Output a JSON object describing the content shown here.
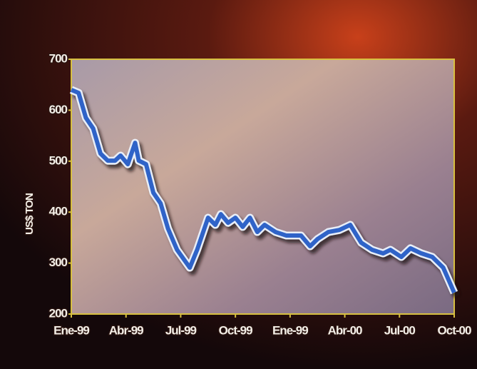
{
  "chart_data": {
    "type": "line",
    "y_label": "US$ TON",
    "x": [
      0,
      0.4,
      0.8,
      1.2,
      1.6,
      2.0,
      2.4,
      2.7,
      3.1,
      3.5,
      3.7,
      4.1,
      4.5,
      4.9,
      5.3,
      5.8,
      6.5,
      6.9,
      7.5,
      7.9,
      8.2,
      8.6,
      9.0,
      9.4,
      9.8,
      10.2,
      10.6,
      11.2,
      11.8,
      12.6,
      13.1,
      13.5,
      14.1,
      14.7,
      15.3,
      15.9,
      16.5,
      17.1,
      17.5,
      18.1,
      18.6,
      19.2,
      19.8,
      20.4,
      21.0
    ],
    "series": [
      {
        "color": "#2f63c8",
        "values": [
          640,
          634,
          585,
          564,
          515,
          501,
          501,
          511,
          494,
          536,
          501,
          494,
          438,
          417,
          368,
          326,
          291,
          326,
          389,
          375,
          396,
          379,
          389,
          371,
          389,
          361,
          375,
          361,
          354,
          354,
          333,
          347,
          361,
          365,
          375,
          340,
          326,
          319,
          326,
          312,
          329,
          319,
          312,
          291,
          242
        ]
      }
    ],
    "xlim": [
      0,
      21
    ],
    "xticks": [
      {
        "value": 0,
        "label": "Ene-99"
      },
      {
        "value": 3,
        "label": "Abr-99"
      },
      {
        "value": 6,
        "label": "Jul-99"
      },
      {
        "value": 9,
        "label": "Oct-99"
      },
      {
        "value": 12,
        "label": "Ene-99"
      },
      {
        "value": 15,
        "label": "Abr-00"
      },
      {
        "value": 18,
        "label": "Jul-00"
      },
      {
        "value": 21,
        "label": "Oct-00"
      }
    ],
    "ylim": [
      200,
      700
    ],
    "yticks": [
      200,
      300,
      400,
      500,
      600,
      700
    ],
    "grid": false
  }
}
